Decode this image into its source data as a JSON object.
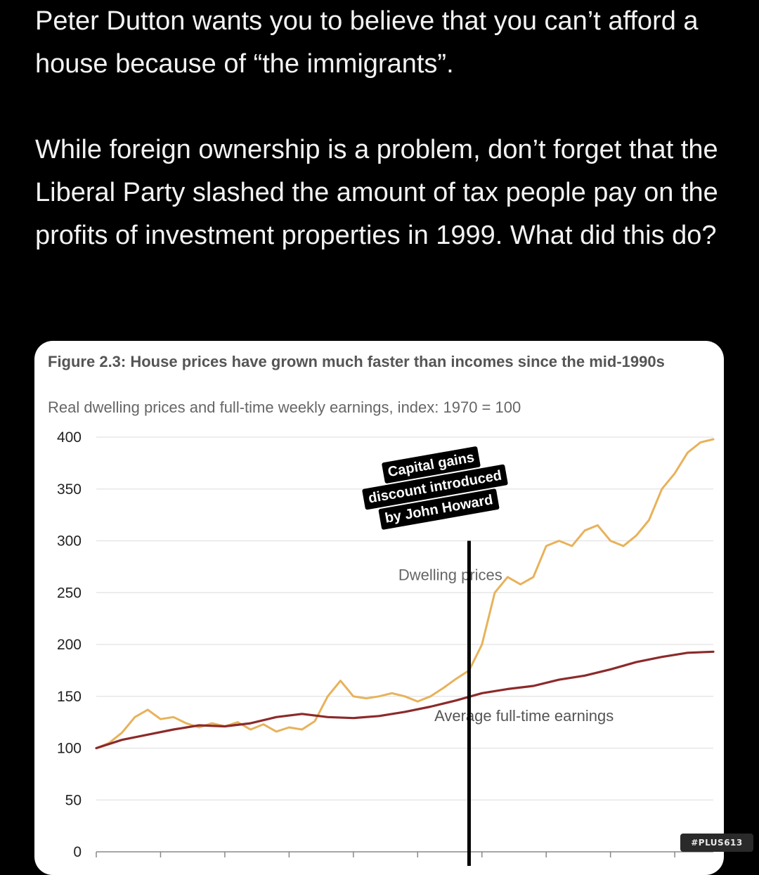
{
  "tweet": {
    "para1": "Peter Dutton wants you to believe that you can’t afford a house because of “the immigrants”.",
    "para2": "While foreign ownership is a problem, don’t forget that the Liberal Party slashed the amount of tax people pay on the profits of investment properties in 1999. What did this do?"
  },
  "figure": {
    "title": "Figure 2.3: House prices have grown much faster than incomes since the mid-1990s",
    "subtitle": "Real dwelling prices and full-time weekly earnings, index: 1970 = 100"
  },
  "annotation": {
    "line1": "Capital gains",
    "line2": "discount introduced",
    "line3": "by John Howard"
  },
  "watermark": "#PLUS613",
  "chart_data": {
    "type": "line",
    "ylim": [
      0,
      400
    ],
    "yticks": [
      "0",
      "50",
      "100",
      "150",
      "200",
      "250",
      "300",
      "350",
      "400"
    ],
    "xlim": [
      1970,
      2018
    ],
    "grid": true,
    "colors": {
      "dwelling": "#E8B25A",
      "earnings": "#8C2A2A",
      "annotation_line": "#000000"
    },
    "annotation_x": 1999,
    "series": [
      {
        "name": "Dwelling prices",
        "x": [
          1970,
          1971,
          1972,
          1973,
          1974,
          1975,
          1976,
          1977,
          1978,
          1979,
          1980,
          1981,
          1982,
          1983,
          1984,
          1985,
          1986,
          1987,
          1988,
          1989,
          1990,
          1991,
          1992,
          1993,
          1994,
          1995,
          1996,
          1997,
          1998,
          1999,
          2000,
          2001,
          2002,
          2003,
          2004,
          2005,
          2006,
          2007,
          2008,
          2009,
          2010,
          2011,
          2012,
          2013,
          2014,
          2015,
          2016,
          2017,
          2018
        ],
        "values": [
          100,
          105,
          115,
          130,
          137,
          128,
          130,
          124,
          120,
          124,
          121,
          125,
          118,
          123,
          116,
          120,
          118,
          126,
          150,
          165,
          150,
          148,
          150,
          153,
          150,
          145,
          150,
          158,
          167,
          175,
          200,
          250,
          265,
          258,
          265,
          295,
          300,
          295,
          310,
          315,
          300,
          295,
          305,
          320,
          350,
          365,
          385,
          395,
          398
        ]
      },
      {
        "name": "Average full-time earnings",
        "x": [
          1970,
          1972,
          1974,
          1976,
          1978,
          1980,
          1982,
          1984,
          1986,
          1988,
          1990,
          1992,
          1994,
          1996,
          1998,
          2000,
          2002,
          2004,
          2006,
          2008,
          2010,
          2012,
          2014,
          2016,
          2018
        ],
        "values": [
          100,
          108,
          113,
          118,
          122,
          121,
          124,
          130,
          133,
          130,
          129,
          131,
          135,
          140,
          146,
          153,
          157,
          160,
          166,
          170,
          176,
          183,
          188,
          192,
          193
        ]
      }
    ],
    "labels": {
      "dwelling": "Dwelling prices",
      "earnings": "Average full-time earnings"
    }
  }
}
